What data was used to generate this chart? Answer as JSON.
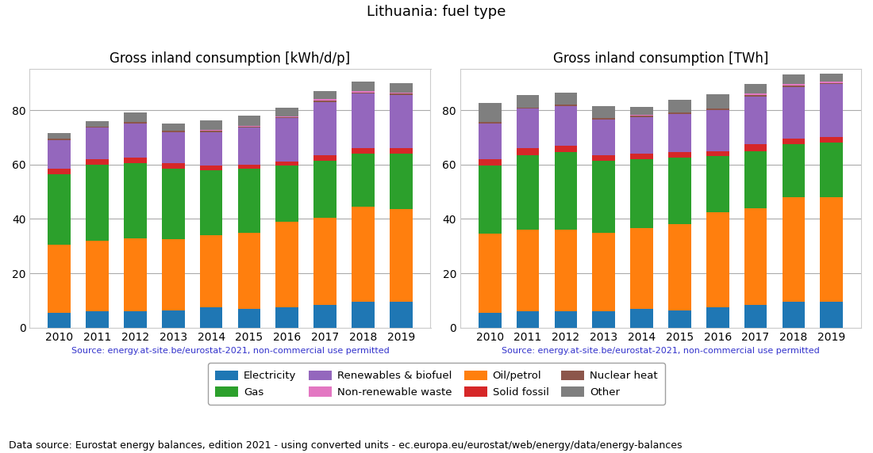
{
  "years": [
    2010,
    2011,
    2012,
    2013,
    2014,
    2015,
    2016,
    2017,
    2018,
    2019
  ],
  "left_title": "Gross inland consumption [kWh/d/p]",
  "right_title": "Gross inland consumption [TWh]",
  "super_title": "Lithuania: fuel type",
  "source_text": "Source: energy.at-site.be/eurostat-2021, non-commercial use permitted",
  "footnote": "Data source: Eurostat energy balances, edition 2021 - using converted units - ec.europa.eu/eurostat/web/energy/data/energy-balances",
  "categories": [
    "Electricity",
    "Oil/petrol",
    "Gas",
    "Solid fossil",
    "Renewables & biofuel",
    "Nuclear heat",
    "Non-renewable waste",
    "Other"
  ],
  "colors": [
    "#1f77b4",
    "#ff7f0e",
    "#2ca02c",
    "#d62728",
    "#9467bd",
    "#8c564b",
    "#e377c2",
    "#7f7f7f"
  ],
  "left_data": {
    "Electricity": [
      5.5,
      6.0,
      6.0,
      6.5,
      7.5,
      7.0,
      7.5,
      8.5,
      9.5,
      9.5
    ],
    "Oil/petrol": [
      25.0,
      26.0,
      27.0,
      26.0,
      26.5,
      28.0,
      31.5,
      32.0,
      35.0,
      34.0
    ],
    "Gas": [
      26.0,
      28.0,
      27.5,
      26.0,
      24.0,
      23.5,
      20.5,
      21.0,
      19.5,
      20.5
    ],
    "Solid fossil": [
      2.0,
      2.0,
      2.0,
      2.0,
      1.5,
      1.5,
      1.5,
      2.0,
      2.0,
      2.0
    ],
    "Renewables & biofuel": [
      10.5,
      11.5,
      12.5,
      11.5,
      12.5,
      13.5,
      16.0,
      19.5,
      20.0,
      19.5
    ],
    "Nuclear heat": [
      0.5,
      0.5,
      0.5,
      0.5,
      0.5,
      0.5,
      0.5,
      0.5,
      0.5,
      0.5
    ],
    "Non-renewable waste": [
      0.0,
      0.0,
      0.0,
      0.0,
      0.2,
      0.2,
      0.2,
      0.5,
      0.5,
      0.5
    ],
    "Other": [
      2.0,
      2.0,
      3.5,
      2.5,
      3.5,
      3.8,
      3.3,
      3.0,
      3.5,
      3.5
    ]
  },
  "right_data": {
    "Electricity": [
      5.5,
      6.0,
      6.0,
      6.0,
      7.0,
      6.5,
      7.5,
      8.5,
      9.5,
      9.5
    ],
    "Oil/petrol": [
      29.0,
      30.0,
      30.0,
      29.0,
      29.5,
      31.5,
      35.0,
      35.5,
      38.5,
      38.5
    ],
    "Gas": [
      25.0,
      27.5,
      28.5,
      26.5,
      25.5,
      24.5,
      20.5,
      21.0,
      19.5,
      20.0
    ],
    "Solid fossil": [
      2.5,
      2.5,
      2.5,
      2.0,
      2.0,
      2.0,
      2.0,
      2.5,
      2.0,
      2.0
    ],
    "Renewables & biofuel": [
      13.0,
      14.5,
      14.5,
      13.0,
      13.5,
      14.0,
      15.0,
      17.5,
      19.0,
      19.5
    ],
    "Nuclear heat": [
      0.5,
      0.5,
      0.5,
      0.5,
      0.5,
      0.5,
      0.5,
      0.5,
      0.5,
      0.5
    ],
    "Non-renewable waste": [
      0.0,
      0.0,
      0.0,
      0.0,
      0.2,
      0.2,
      0.2,
      0.5,
      0.5,
      0.5
    ],
    "Other": [
      7.0,
      4.5,
      4.5,
      4.5,
      3.0,
      4.5,
      5.0,
      3.5,
      3.5,
      3.0
    ]
  },
  "ylim": [
    0,
    95
  ],
  "yticks": [
    0,
    20,
    40,
    60,
    80
  ],
  "bar_width": 0.6,
  "source_color": "#3333cc",
  "source_fontsize": 8,
  "footnote_fontsize": 9,
  "title_fontsize": 12,
  "suptitle_fontsize": 13,
  "legend_fontsize": 9.5,
  "tick_fontsize": 10
}
